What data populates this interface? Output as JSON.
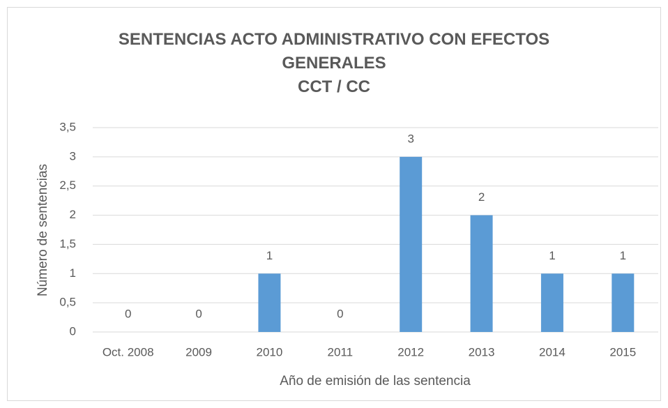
{
  "chart_data": {
    "type": "bar",
    "title": "SENTENCIAS ACTO ADMINISTRATIVO CON EFECTOS GENERALES",
    "subtitle": "CCT / CC",
    "x_label": "Año de emisión de las sentencia",
    "y_label": "Número de sentencias",
    "categories": [
      "Oct. 2008",
      "2009",
      "2010",
      "2011",
      "2012",
      "2013",
      "2014",
      "2015"
    ],
    "values": [
      0,
      0,
      1,
      0,
      3,
      2,
      1,
      1
    ],
    "color": "#5b9bd5",
    "ylim": [
      0,
      3.5
    ],
    "yticks": [
      0,
      {
        "value": 0.5,
        "label": "0,5"
      },
      1,
      {
        "value": 1.5,
        "label": "1,5"
      },
      2,
      {
        "value": 2.5,
        "label": "2,5"
      },
      3,
      {
        "value": 3.5,
        "label": "3,5"
      }
    ],
    "grid": true
  }
}
